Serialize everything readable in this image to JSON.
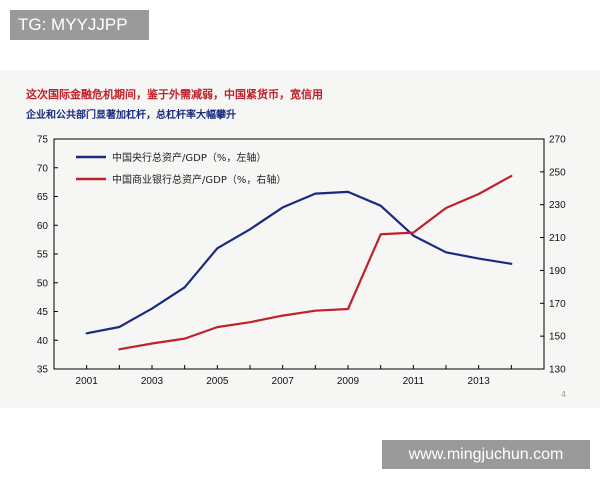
{
  "header": {
    "tag": "TG: MYYJJPP"
  },
  "slide": {
    "title": "这次国际金融危机期间，鉴于外需减弱，中国紧货币，宽信用",
    "subtitle": "企业和公共部门显著加杠杆，总杠杆率大幅攀升",
    "page_number": "4"
  },
  "footer": {
    "watermark": "www.mingjuchun.com"
  },
  "chart_data": {
    "type": "line",
    "x": [
      2001,
      2002,
      2003,
      2004,
      2005,
      2006,
      2007,
      2008,
      2009,
      2010,
      2011,
      2012,
      2013,
      2014
    ],
    "x_ticks": [
      "2001",
      "2003",
      "2005",
      "2007",
      "2009",
      "2011",
      "2013"
    ],
    "y_left": {
      "ticks": [
        "35",
        "40",
        "45",
        "50",
        "55",
        "60",
        "65",
        "70",
        "75"
      ],
      "lim": [
        35,
        75
      ]
    },
    "y_right": {
      "ticks": [
        "130",
        "150",
        "170",
        "190",
        "210",
        "230",
        "250",
        "270"
      ],
      "lim": [
        130,
        270
      ]
    },
    "grid": false,
    "legend_position": "top-left",
    "series": [
      {
        "name": "中国央行总资产/GDP（%，左轴）",
        "axis": "left",
        "color": "#1a2a80",
        "x": [
          2001,
          2002,
          2003,
          2004,
          2005,
          2006,
          2007,
          2008,
          2009,
          2010,
          2011,
          2012,
          2013,
          2014
        ],
        "values": [
          41.2,
          42.3,
          45.5,
          49.2,
          56.0,
          59.3,
          63.1,
          65.5,
          65.8,
          63.4,
          58.2,
          55.3,
          54.2,
          53.3
        ]
      },
      {
        "name": "中国商业银行总资产/GDP（%，右轴）",
        "axis": "right",
        "color": "#c0212b",
        "x": [
          2002,
          2003,
          2004,
          2005,
          2006,
          2007,
          2008,
          2009,
          2010,
          2011,
          2012,
          2013,
          2014
        ],
        "values": [
          142,
          145.5,
          148.5,
          155.5,
          158.5,
          162.5,
          165.5,
          166.5,
          212,
          213,
          228,
          236.5,
          247.5
        ]
      }
    ]
  }
}
